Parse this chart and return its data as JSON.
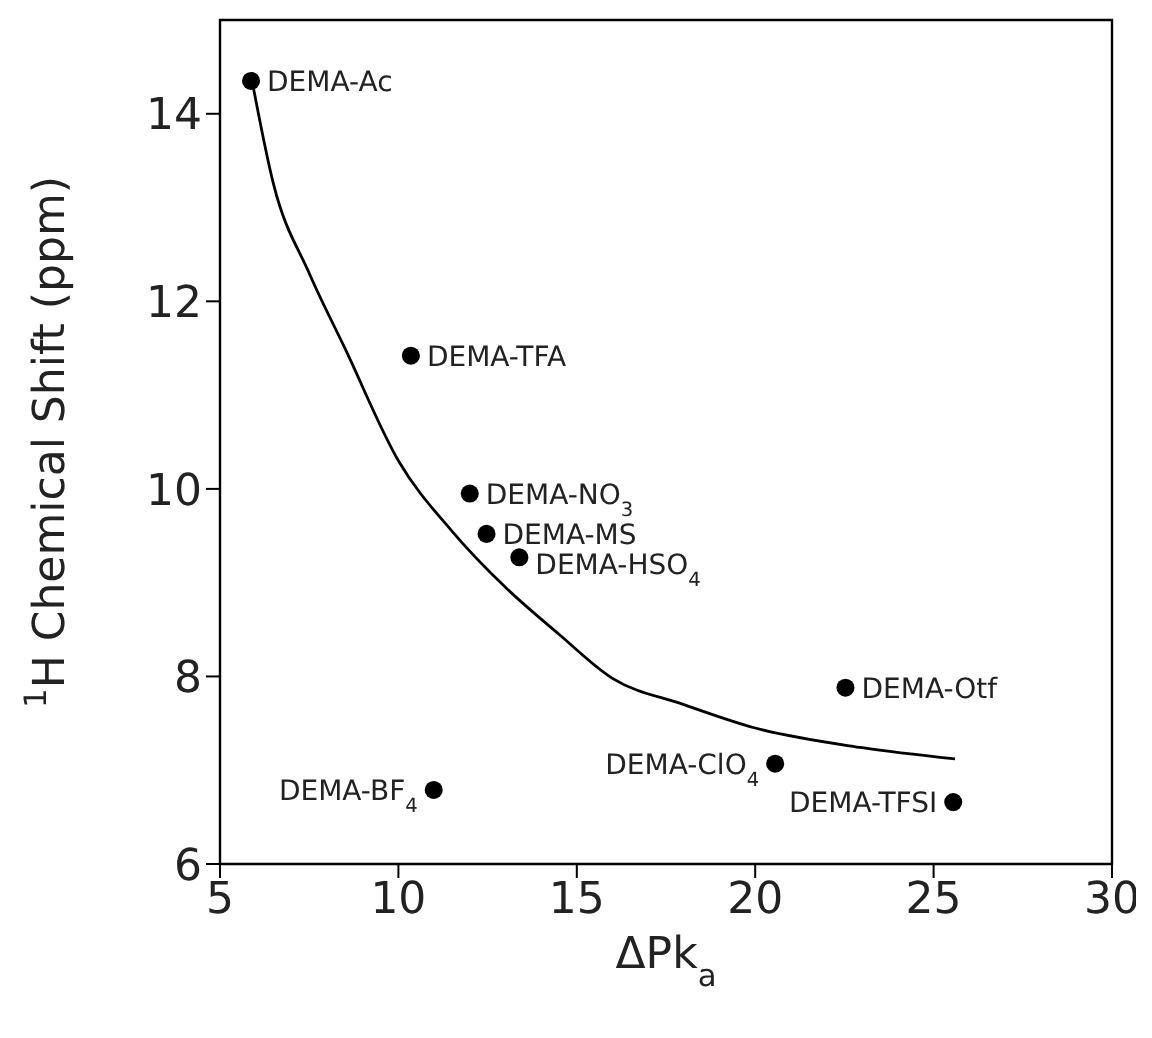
{
  "chart_data": {
    "type": "scatter",
    "xlabel": "ΔPk$_{a}$",
    "ylabel": "$^{1}$H Chemical Shift (ppm)",
    "xlim": [
      5,
      30
    ],
    "xticks": [
      5,
      10,
      15,
      20,
      25,
      30
    ],
    "ylim": [
      6,
      15
    ],
    "yticks": [
      6,
      8,
      10,
      12,
      14
    ],
    "marker": "circle",
    "series": [
      {
        "color": "#000000",
        "x": [
          5.87,
          10.35,
          12.0,
          12.47,
          13.39,
          22.53,
          20.56,
          10.99,
          25.55
        ],
        "values": [
          14.35,
          11.42,
          9.95,
          9.52,
          9.27,
          7.88,
          7.07,
          6.79,
          6.66
        ]
      },
      {
        "type": "line",
        "color": "#000000",
        "marker": "none",
        "x": [
          5.9,
          6.5,
          7.5,
          8.5,
          10.0,
          11.5,
          13.0,
          14.5,
          16.0,
          18.0,
          20.0,
          23.0,
          25.6
        ],
        "values": [
          14.35,
          13.25,
          12.3,
          11.5,
          10.3,
          9.55,
          8.95,
          8.45,
          7.98,
          7.7,
          7.45,
          7.24,
          7.12
        ]
      }
    ],
    "annotations": [
      {
        "text": "DEMA-Ac",
        "x": 5.87,
        "y": 14.35
      },
      {
        "text": "DEMA-TFA",
        "x": 10.35,
        "y": 11.42
      },
      {
        "text": "DEMA-NO$_{3}$",
        "x": 12.0,
        "y": 9.95
      },
      {
        "text": "DEMA-MS",
        "x": 12.47,
        "y": 9.52
      },
      {
        "text": "DEMA-HSO$_{4}$",
        "x": 13.39,
        "y": 9.27
      },
      {
        "text": "DEMA-Otf",
        "x": 22.53,
        "y": 7.88
      },
      {
        "text": "DEMA-ClO$_{4}$",
        "x": 20.56,
        "y": 7.07
      },
      {
        "text": "DEMA-BF$_{4}$",
        "x": 10.99,
        "y": 6.79
      },
      {
        "text": "DEMA-TFSI",
        "x": 25.55,
        "y": 6.66
      }
    ]
  }
}
